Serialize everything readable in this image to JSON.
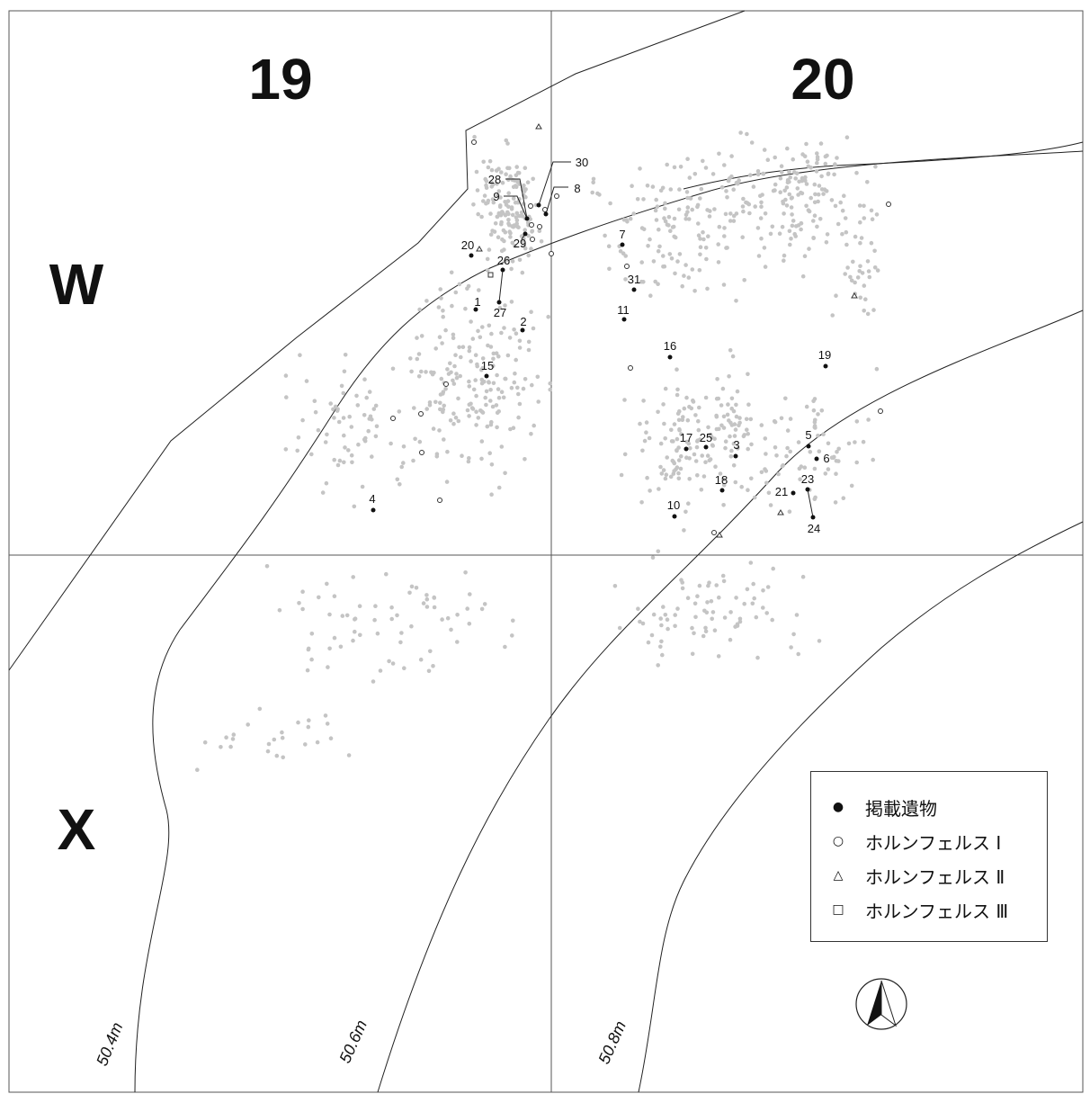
{
  "grid": {
    "columns": [
      "19",
      "20"
    ],
    "rows": [
      "W",
      "X"
    ]
  },
  "contours": [
    "50.4m",
    "50.6m",
    "50.8m"
  ],
  "legend": [
    {
      "symbol": "dot",
      "label": "掲載遺物"
    },
    {
      "symbol": "circle",
      "label": "ホルンフェルス Ⅰ"
    },
    {
      "symbol": "triangle",
      "label": "ホルンフェルス Ⅱ"
    },
    {
      "symbol": "square",
      "label": "ホルンフェルス Ⅲ"
    }
  ],
  "published_artifact_numbers": [
    "1",
    "2",
    "3",
    "4",
    "5",
    "6",
    "7",
    "8",
    "9",
    "10",
    "11",
    "15",
    "16",
    "17",
    "18",
    "19",
    "20",
    "21",
    "23",
    "24",
    "25",
    "26",
    "27",
    "28",
    "29",
    "30",
    "31"
  ],
  "colors": {
    "scatter": "#c4c4c4",
    "line": "#222222",
    "grid": "#555555"
  },
  "north_arrow": "north-arrow-icon"
}
